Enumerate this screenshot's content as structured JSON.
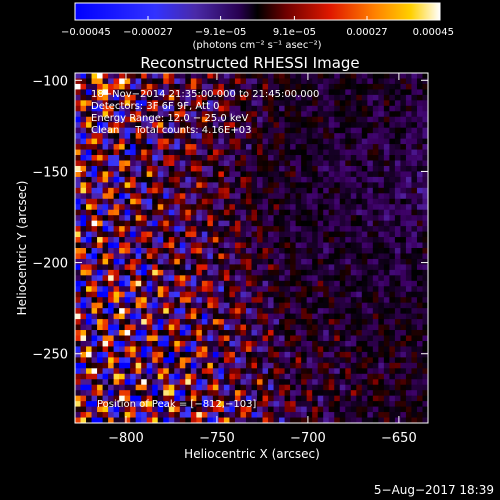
{
  "chart_data": {
    "type": "heatmap",
    "title": "Reconstructed RHESSI Image",
    "xlabel": "Heliocentric X (arcsec)",
    "ylabel": "Heliocentric Y (arcsec)",
    "xlim": [
      -828,
      -634
    ],
    "ylim": [
      -288,
      -96
    ],
    "xticks": [
      -800,
      -750,
      -700,
      -650
    ],
    "xtick_labels": [
      "−800",
      "−750",
      "−700",
      "−650"
    ],
    "yticks": [
      -100,
      -150,
      -200,
      -250
    ],
    "ytick_labels": [
      "−100",
      "−150",
      "−200",
      "−250"
    ],
    "colorbar": {
      "min": -0.00045,
      "max": 0.00045,
      "ticks": [
        -0.00045,
        -0.00027,
        -9.1e-05,
        9.1e-05,
        0.00027,
        0.00045
      ],
      "tick_labels": [
        "−0.00045",
        "−0.00027",
        "−9.1e−05",
        "9.1e−05",
        "0.00027",
        "0.00045"
      ],
      "unit_label": "(photons cm⁻² s⁻¹ asec⁻²)"
    },
    "annotations": {
      "time_range": "18−Nov−2014 21:35:00.000 to 21:45:00.000",
      "detectors": "Detectors: 3F 6F 9F, Att 0",
      "energy_range": "Energy Range: 12.0 − 25.0 keV",
      "clean_counts": "Clean     Total counts: 4.16E+03",
      "peak_position": "Position of Peak = [−812,−103]"
    },
    "peak": {
      "x": -812,
      "y": -103
    },
    "grid": false
  },
  "footer": {
    "timestamp": "5−Aug−2017 18:39"
  },
  "colors": {
    "background": "#000000",
    "text": "#ffffff",
    "colormap": [
      "#0000ff",
      "#3a3aff",
      "#50209e",
      "#3c0064",
      "#000000",
      "#7a0000",
      "#e01800",
      "#ff8000",
      "#ffd000",
      "#ffffff"
    ]
  }
}
